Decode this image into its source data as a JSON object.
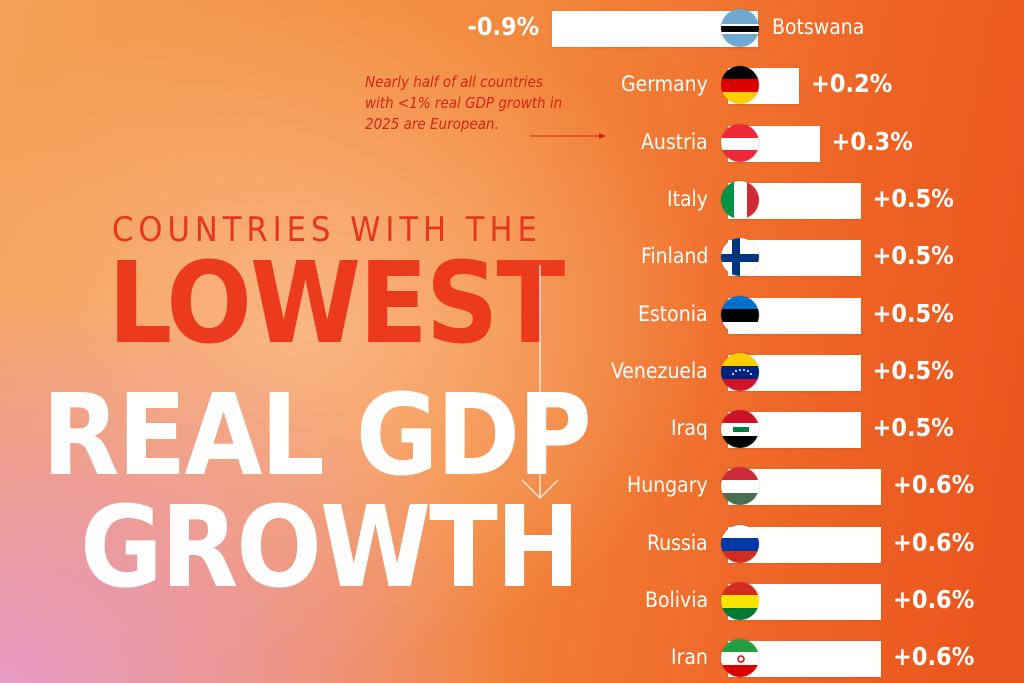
{
  "title": {
    "line1": "COUNTRIES WITH THE",
    "line2": "LOWEST",
    "line3": "REAL GDP",
    "line4": "GROWTH"
  },
  "annotation": "Nearly half of all countries with <1% real GDP growth in 2025 are European.",
  "colors": {
    "accent_red": "#ec3a1f",
    "bar": "#ffffff",
    "text": "#ffffff"
  },
  "chart_data": {
    "type": "bar",
    "orientation": "horizontal",
    "unit": "%",
    "categories": [
      "Botswana",
      "Germany",
      "Austria",
      "Italy",
      "Finland",
      "Estonia",
      "Venezuela",
      "Iraq",
      "Hungary",
      "Russia",
      "Bolivia",
      "Iran"
    ],
    "values": [
      -0.9,
      0.2,
      0.3,
      0.5,
      0.5,
      0.5,
      0.5,
      0.5,
      0.6,
      0.6,
      0.6,
      0.6
    ],
    "labels": [
      "-0.9%",
      "+0.2%",
      "+0.3%",
      "+0.5%",
      "+0.5%",
      "+0.5%",
      "+0.5%",
      "+0.5%",
      "+0.6%",
      "+0.6%",
      "+0.6%",
      "+0.6%"
    ],
    "flags": [
      "botswana-flag",
      "germany-flag",
      "austria-flag",
      "italy-flag",
      "finland-flag",
      "estonia-flag",
      "venezuela-flag",
      "iraq-flag",
      "hungary-flag",
      "russia-flag",
      "bolivia-flag",
      "iran-flag"
    ]
  }
}
